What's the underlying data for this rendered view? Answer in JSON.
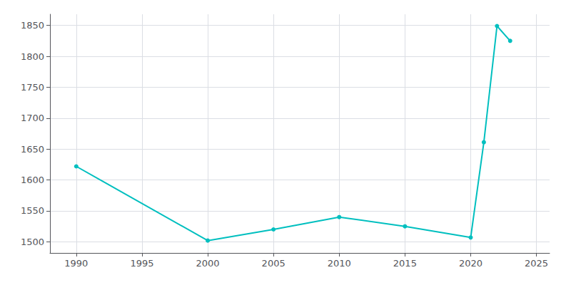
{
  "chart_data": {
    "type": "line",
    "x": [
      1990,
      2000,
      2005,
      2010,
      2015,
      2020,
      2021,
      2022,
      2023
    ],
    "values": [
      1622,
      1502,
      1520,
      1540,
      1525,
      1507,
      1661,
      1849,
      1825
    ],
    "color": "#00BFBF",
    "marker": "circle",
    "xlim": [
      1988,
      2026
    ],
    "ylim": [
      1482,
      1868
    ],
    "xticks": [
      1990,
      1995,
      2000,
      2005,
      2010,
      2015,
      2020,
      2025
    ],
    "yticks": [
      1500,
      1550,
      1600,
      1650,
      1700,
      1750,
      1800,
      1850
    ],
    "grid": true
  }
}
